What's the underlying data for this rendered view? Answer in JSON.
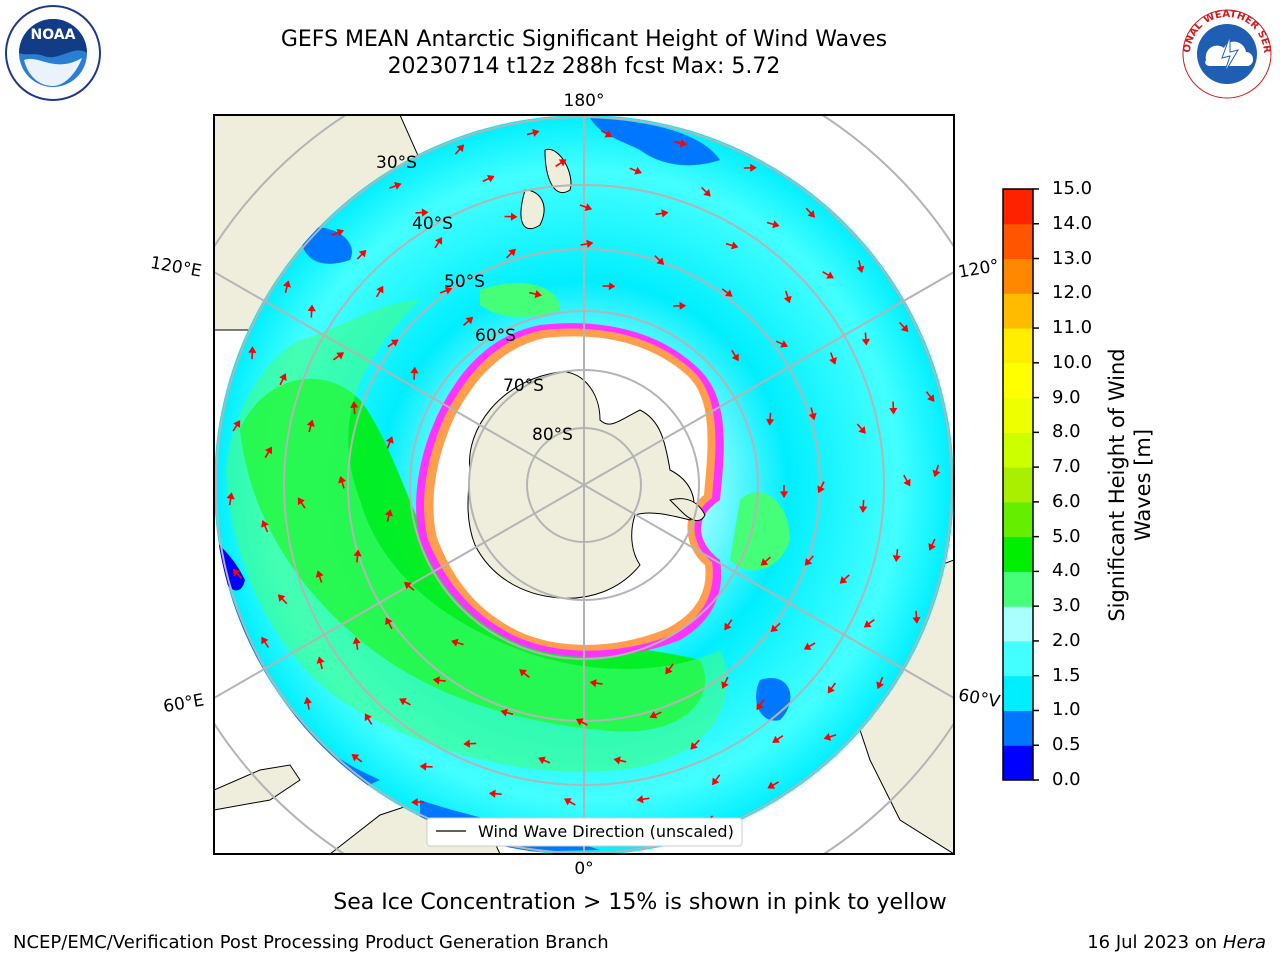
{
  "header": {
    "title_line1": "GEFS MEAN Antarctic Significant Height of Wind Waves",
    "title_line2": "20230714 t12z 288h fcst   Max: 5.72"
  },
  "map": {
    "projection": "south-polar-stereographic",
    "longitude_labels": {
      "top": "180°",
      "bottom": "0°",
      "left_upper": "120°E",
      "left_lower": "60°E",
      "right_upper": "120°",
      "right_lower": "60°V"
    },
    "latitude_labels": [
      "30°S",
      "40°S",
      "50°S",
      "60°S",
      "70°S",
      "80°S"
    ],
    "legend_text": "Wind Wave Direction (unscaled)",
    "colors": {
      "land": "#efeedd",
      "ice_interior": "#ffffff",
      "ice_edge_pink": "#ff33ff",
      "ice_edge_yellow": "#ffcc00",
      "arrow": "#ff0000",
      "grid": "#b4b4b4"
    }
  },
  "colorbar": {
    "title_line1": "Significant Height of Wind",
    "title_line2": "Waves [m]",
    "ticks": [
      "15.0",
      "14.0",
      "13.0",
      "12.0",
      "11.0",
      "10.0",
      "9.0",
      "8.0",
      "7.0",
      "6.0",
      "5.0",
      "4.0",
      "3.0",
      "2.0",
      "1.5",
      "1.0",
      "0.5",
      "0.0"
    ],
    "colors_bottom_to_top": [
      "#0000ff",
      "#0077ff",
      "#00eeff",
      "#44ffff",
      "#aaffff",
      "#44ff77",
      "#00ee00",
      "#66ee00",
      "#aaee00",
      "#ccff00",
      "#eeff00",
      "#ffff00",
      "#ffee00",
      "#ffbb00",
      "#ff8800",
      "#ff5500",
      "#ff2200"
    ]
  },
  "footer": {
    "note": "Sea Ice Concentration > 15% is shown in pink to yellow",
    "credit_left": "NCEP/EMC/Verification Post Processing Product Generation Branch",
    "credit_right_prefix": "16 Jul 2023 on ",
    "credit_right_host": "Hera"
  },
  "logos": {
    "noaa_text": "NOAA",
    "nws_text": "NATIONAL WEATHER SERVICE"
  }
}
